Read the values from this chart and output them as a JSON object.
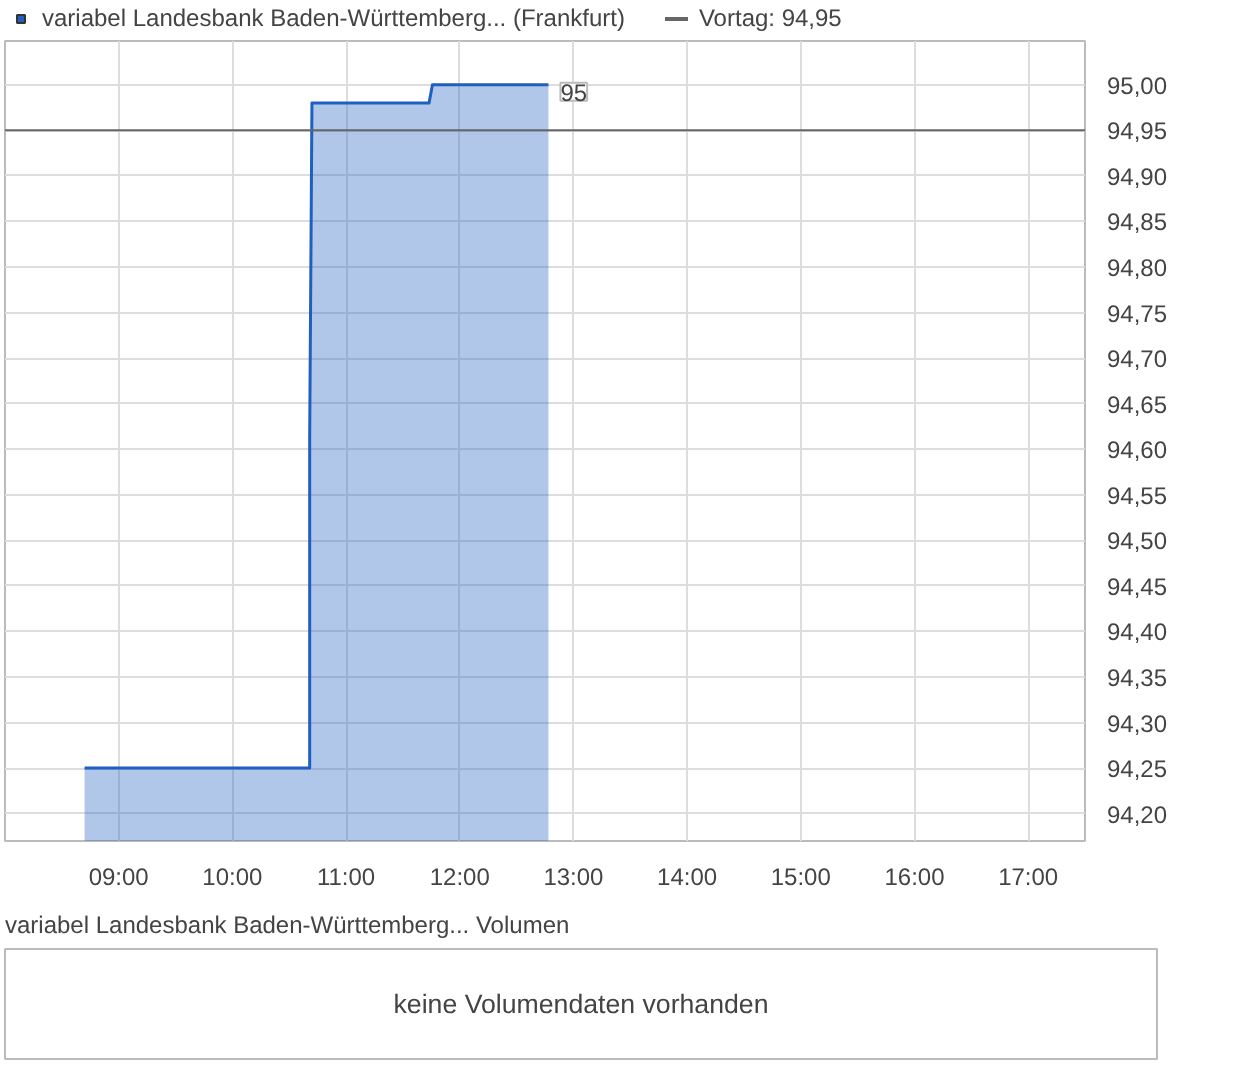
{
  "chart_data": [
    {
      "type": "area",
      "legend": "top",
      "series": [
        {
          "name": "variabel Landesbank Baden-Württemberg... (Frankfurt)",
          "color": "#1f5fbf",
          "x": [
            8.7,
            10.68,
            10.68,
            10.7,
            11.73,
            11.76,
            12.78
          ],
          "values": [
            94.25,
            94.25,
            94.61,
            94.98,
            94.98,
            95.0,
            95.0
          ]
        }
      ],
      "xlim": [
        8.0,
        17.5
      ],
      "ylim": [
        94.17,
        95.048
      ],
      "xticks": [
        {
          "value": 9,
          "label": "09:00"
        },
        {
          "value": 10,
          "label": "10:00"
        },
        {
          "value": 11,
          "label": "11:00"
        },
        {
          "value": 12,
          "label": "12:00"
        },
        {
          "value": 13,
          "label": "13:00"
        },
        {
          "value": 14,
          "label": "14:00"
        },
        {
          "value": 15,
          "label": "15:00"
        },
        {
          "value": 16,
          "label": "16:00"
        },
        {
          "value": 17,
          "label": "17:00"
        }
      ],
      "yticks": [
        {
          "value": 94.2,
          "label": "94,20"
        },
        {
          "value": 94.25,
          "label": "94,25"
        },
        {
          "value": 94.3,
          "label": "94,30"
        },
        {
          "value": 94.35,
          "label": "94,35"
        },
        {
          "value": 94.4,
          "label": "94,40"
        },
        {
          "value": 94.45,
          "label": "94,45"
        },
        {
          "value": 94.5,
          "label": "94,50"
        },
        {
          "value": 94.55,
          "label": "94,55"
        },
        {
          "value": 94.6,
          "label": "94,60"
        },
        {
          "value": 94.65,
          "label": "94,65"
        },
        {
          "value": 94.7,
          "label": "94,70"
        },
        {
          "value": 94.75,
          "label": "94,75"
        },
        {
          "value": 94.8,
          "label": "94,80"
        },
        {
          "value": 94.85,
          "label": "94,85"
        },
        {
          "value": 94.9,
          "label": "94,90"
        },
        {
          "value": 94.95,
          "label": "94,95"
        },
        {
          "value": 95.0,
          "label": "95,00"
        }
      ],
      "grid": true,
      "ref_lines": [
        {
          "axis": "y",
          "value": 94.95,
          "label": "Vortag: 94,95",
          "color": "#666666"
        }
      ],
      "annotations": [
        {
          "text": "95",
          "x": 12.78,
          "y": 95.0
        }
      ]
    },
    {
      "type": "other",
      "title": "variabel Landesbank Baden-Württemberg... Volumen",
      "annotations": [
        "keine Volumendaten vorhanden"
      ]
    }
  ]
}
